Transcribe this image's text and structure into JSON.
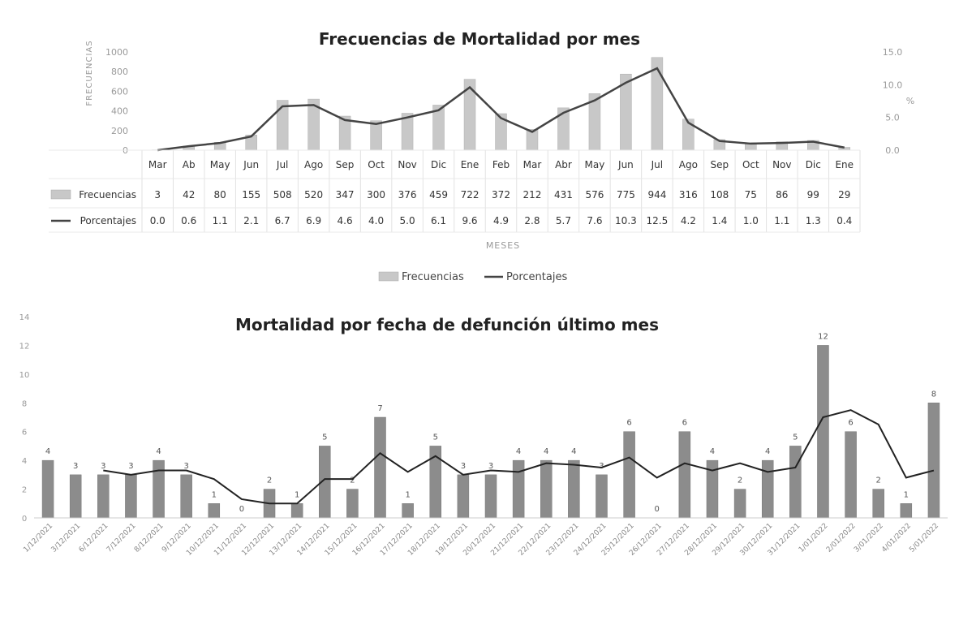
{
  "chart_data": [
    {
      "type": "bar",
      "title": "Frecuencias de Mortalidad por mes",
      "xlabel": "MESES",
      "ylabel": "FRECUENCIAS",
      "y2label": "%",
      "ylim": [
        0,
        1000
      ],
      "y2lim": [
        0,
        15
      ],
      "yticks": [
        "0",
        "200",
        "400",
        "600",
        "800",
        "1000"
      ],
      "y2ticks": [
        "0.0",
        "5.0",
        "10.0",
        "15.0"
      ],
      "categories": [
        "Mar",
        "Ab",
        "May",
        "Jun",
        "Jul",
        "Ago",
        "Sep",
        "Oct",
        "Nov",
        "Dic",
        "Ene",
        "Feb",
        "Mar",
        "Abr",
        "May",
        "Jun",
        "Jul",
        "Ago",
        "Sep",
        "Oct",
        "Nov",
        "Dic",
        "Ene"
      ],
      "series": [
        {
          "name": "Frecuencias",
          "type": "bar",
          "values": [
            3,
            42,
            80,
            155,
            508,
            520,
            347,
            300,
            376,
            459,
            722,
            372,
            212,
            431,
            576,
            775,
            944,
            316,
            108,
            75,
            86,
            99,
            29
          ],
          "labels": [
            "3",
            "42",
            "80",
            "155",
            "508",
            "520",
            "347",
            "300",
            "376",
            "459",
            "722",
            "372",
            "212",
            "431",
            "576",
            "775",
            "944",
            "316",
            "108",
            "75",
            "86",
            "99",
            "29"
          ],
          "color": "#c8c8c8"
        },
        {
          "name": "Porcentajes",
          "type": "line",
          "axis": "y2",
          "values": [
            0.0,
            0.6,
            1.1,
            2.1,
            6.7,
            6.9,
            4.6,
            4.0,
            5.0,
            6.1,
            9.6,
            4.9,
            2.8,
            5.7,
            7.6,
            10.3,
            12.5,
            4.2,
            1.4,
            1.0,
            1.1,
            1.3,
            0.4
          ],
          "labels": [
            "0.0",
            "0.6",
            "1.1",
            "2.1",
            "6.7",
            "6.9",
            "4.6",
            "4.0",
            "5.0",
            "6.1",
            "9.6",
            "4.9",
            "2.8",
            "5.7",
            "7.6",
            "10.3",
            "12.5",
            "4.2",
            "1.4",
            "1.0",
            "1.1",
            "1.3",
            "0.4"
          ],
          "color": "#444444"
        }
      ],
      "legend": [
        "Frecuencias",
        "Porcentajes"
      ],
      "legend_position": "bottom",
      "data_table": true
    },
    {
      "type": "bar",
      "title": "Mortalidad por fecha de defunción último mes",
      "ylim": [
        0,
        14
      ],
      "yticks": [
        "0",
        "2",
        "4",
        "6",
        "8",
        "10",
        "12",
        "14"
      ],
      "categories": [
        "1/12/2021",
        "3/12/2021",
        "6/12/2021",
        "7/12/2021",
        "8/12/2021",
        "9/12/2021",
        "10/12/2021",
        "11/12/2021",
        "12/12/2021",
        "13/12/2021",
        "14/12/2021",
        "15/12/2021",
        "16/12/2021",
        "17/12/2021",
        "18/12/2021",
        "19/12/2021",
        "20/12/2021",
        "21/12/2021",
        "22/12/2021",
        "23/12/2021",
        "24/12/2021",
        "25/12/2021",
        "26/12/2021",
        "27/12/2021",
        "28/12/2021",
        "29/12/2021",
        "30/12/2021",
        "31/12/2021",
        "1/01/2022",
        "2/01/2022",
        "3/01/2022",
        "4/01/2022",
        "5/01/2022"
      ],
      "series": [
        {
          "type": "bar",
          "values": [
            4,
            3,
            3,
            3,
            4,
            3,
            1,
            0,
            2,
            1,
            5,
            2,
            7,
            1,
            5,
            3,
            3,
            4,
            4,
            4,
            3,
            6,
            0,
            6,
            4,
            2,
            4,
            5,
            12,
            6,
            2,
            1,
            8
          ],
          "labels": [
            "4",
            "3",
            "3",
            "3",
            "4",
            "3",
            "1",
            "0",
            "2",
            "1",
            "5",
            "2",
            "7",
            "1",
            "5",
            "3",
            "3",
            "4",
            "4",
            "4",
            "3",
            "6",
            "0",
            "6",
            "4",
            "2",
            "4",
            "5",
            "12",
            "6",
            "2",
            "1",
            "8"
          ],
          "color": "#8c8c8c"
        },
        {
          "type": "line",
          "values": [
            null,
            null,
            3.3,
            3.0,
            3.3,
            3.3,
            2.7,
            1.3,
            1.0,
            1.0,
            2.7,
            2.7,
            4.5,
            3.2,
            4.3,
            3.0,
            3.3,
            3.2,
            3.8,
            3.7,
            3.5,
            4.2,
            2.8,
            3.8,
            3.3,
            3.8,
            3.2,
            3.5,
            7.0,
            7.5,
            6.5,
            2.8,
            3.3
          ],
          "color": "#222222"
        }
      ]
    }
  ]
}
